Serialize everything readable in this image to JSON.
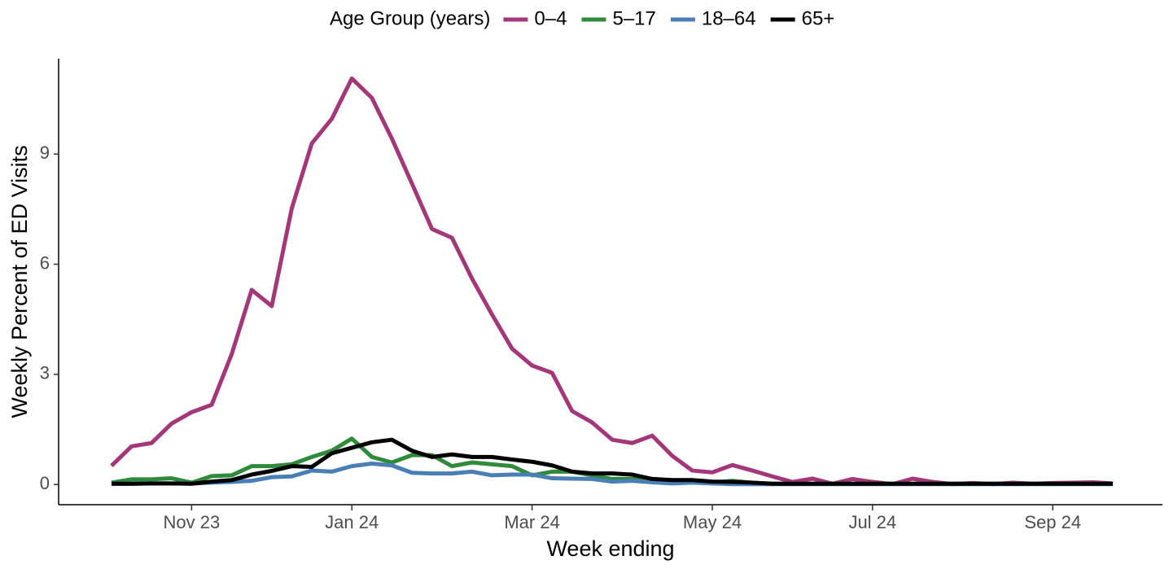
{
  "chart_data": {
    "type": "line",
    "legend_title": "Age Group (years)",
    "x_label": "Week ending",
    "y_label": "Weekly Percent of ED Visits",
    "categories": [
      null,
      null,
      null,
      null,
      "Nov 23",
      null,
      null,
      null,
      null,
      null,
      null,
      null,
      "Jan 24",
      null,
      null,
      null,
      null,
      null,
      null,
      null,
      null,
      "Mar 24",
      null,
      null,
      null,
      null,
      null,
      null,
      null,
      null,
      "May 24",
      null,
      null,
      null,
      null,
      null,
      null,
      null,
      "Jul 24",
      null,
      null,
      null,
      null,
      null,
      null,
      null,
      null,
      "Sep 24",
      null,
      null,
      null
    ],
    "series": [
      {
        "name": "0–4",
        "color": "#a3377a",
        "values": [
          0.51,
          1.04,
          1.13,
          1.66,
          1.97,
          2.17,
          3.55,
          5.3,
          4.86,
          7.52,
          9.29,
          9.96,
          11.06,
          10.53,
          9.42,
          8.2,
          6.96,
          6.72,
          5.61,
          4.63,
          3.7,
          3.24,
          3.04,
          2.0,
          1.69,
          1.22,
          1.13,
          1.33,
          0.78,
          0.38,
          0.33,
          0.53,
          0.38,
          0.22,
          0.07,
          0.16,
          0.02,
          0.15,
          0.07,
          0.01,
          0.16,
          0.07,
          0.01,
          0.04,
          0.01,
          0.05,
          0.02,
          0.04,
          0.05,
          0.06,
          0.03
        ]
      },
      {
        "name": "5–17",
        "color": "#2e8b3a",
        "values": [
          0.05,
          0.14,
          0.14,
          0.17,
          0.05,
          0.23,
          0.25,
          0.5,
          0.5,
          0.55,
          0.75,
          0.92,
          1.25,
          0.75,
          0.6,
          0.8,
          0.8,
          0.5,
          0.6,
          0.55,
          0.5,
          0.25,
          0.35,
          0.35,
          0.25,
          0.15,
          0.15,
          0.15,
          0.1,
          0.05,
          0.05,
          0.1,
          0.05,
          0.02,
          0.02,
          0.02,
          0.02,
          0.02,
          0.02,
          0.02,
          0.02,
          0.02,
          0.02,
          0.02,
          0.02,
          0.02,
          0.02,
          0.02,
          0.02,
          0.02,
          0.02
        ]
      },
      {
        "name": "18–64",
        "color": "#4a7fb5",
        "values": [
          0.02,
          0.02,
          0.03,
          0.03,
          0.03,
          0.05,
          0.07,
          0.1,
          0.2,
          0.22,
          0.38,
          0.35,
          0.5,
          0.57,
          0.52,
          0.32,
          0.3,
          0.3,
          0.35,
          0.25,
          0.27,
          0.27,
          0.17,
          0.16,
          0.15,
          0.08,
          0.1,
          0.06,
          0.03,
          0.05,
          0.03,
          0.01,
          0.01,
          0.01,
          0.01,
          0.01,
          0.01,
          0.01,
          0.01,
          0.01,
          0.01,
          0.01,
          0.01,
          0.01,
          0.01,
          0.01,
          0.01,
          0.01,
          0.01,
          0.01,
          0.01
        ]
      },
      {
        "name": "65+",
        "color": "#000000",
        "values": [
          0.02,
          0.02,
          0.03,
          0.03,
          0.02,
          0.08,
          0.12,
          0.27,
          0.37,
          0.5,
          0.48,
          0.85,
          1.0,
          1.15,
          1.22,
          0.92,
          0.75,
          0.82,
          0.75,
          0.75,
          0.68,
          0.62,
          0.52,
          0.35,
          0.3,
          0.3,
          0.27,
          0.15,
          0.12,
          0.12,
          0.08,
          0.07,
          0.05,
          0.02,
          0.02,
          0.02,
          0.02,
          0.02,
          0.02,
          0.02,
          0.02,
          0.02,
          0.02,
          0.02,
          0.02,
          0.02,
          0.02,
          0.02,
          0.02,
          0.02,
          0.02
        ]
      }
    ],
    "ylim": [
      -0.55,
      11.6
    ],
    "yticks": [
      0,
      3,
      6,
      9
    ],
    "grid": false,
    "legend": "top"
  }
}
